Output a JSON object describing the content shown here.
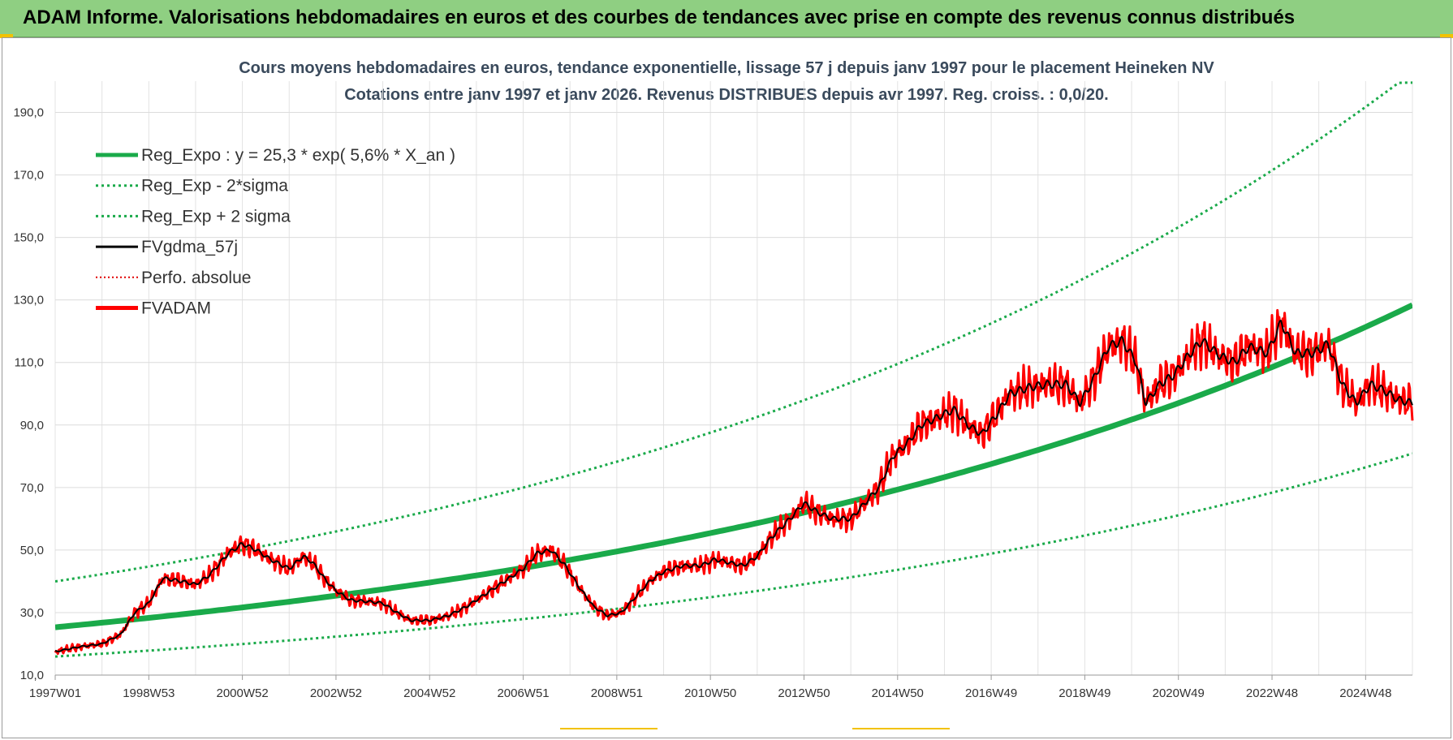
{
  "banner": {
    "title": "ADAM Informe. Valorisations hebdomadaires en euros et des courbes de tendances avec prise en compte des revenus connus distribués"
  },
  "chart_data": {
    "type": "line",
    "title": "Cours moyens hebdomadaires en euros, tendance exponentielle, lissage 57 j depuis janv 1997 pour le placement Heineken NV",
    "subtitle": "Cotations entre janv 1997 et janv 2026. Revenus DISTRIBUES depuis avr 1997. Reg. croiss. : 0,0/20.",
    "x_range": [
      "1997W01",
      "2026W02"
    ],
    "x_tick_labels": [
      "1997W01",
      "1998W53",
      "2000W52",
      "2002W52",
      "2004W52",
      "2006W51",
      "2008W51",
      "2010W50",
      "2012W50",
      "2014W50",
      "2016W49",
      "2018W49",
      "2020W49",
      "2022W48",
      "2024W48"
    ],
    "x_tick_years": [
      1997.0,
      1999.0,
      2001.0,
      2003.0,
      2005.0,
      2007.0,
      2009.0,
      2011.0,
      2013.0,
      2015.0,
      2017.0,
      2019.0,
      2021.0,
      2023.0,
      2025.0
    ],
    "ylim": [
      10,
      200
    ],
    "y_ticks": [
      "10,0",
      "30,0",
      "50,0",
      "70,0",
      "90,0",
      "110,0",
      "130,0",
      "150,0",
      "170,0",
      "190,0"
    ],
    "y_tick_values": [
      10,
      30,
      50,
      70,
      90,
      110,
      130,
      150,
      170,
      190
    ],
    "grid": true,
    "legend_position": "top-left",
    "regression": {
      "a": 25.3,
      "rate": 0.056,
      "upper_factor": 1.58,
      "lower_factor": 0.63
    },
    "series": [
      {
        "name": "Reg_Expo : y = 25,3 * exp( 5,6% *  X_an )",
        "color": "#1aaa4a",
        "style": "solid-thick"
      },
      {
        "name": "Reg_Exp - 2*sigma",
        "color": "#1aaa4a",
        "style": "dotted"
      },
      {
        "name": "Reg_Exp + 2 sigma",
        "color": "#1aaa4a",
        "style": "dotted"
      },
      {
        "name": "FVgdma_57j",
        "color": "#000000",
        "style": "solid"
      },
      {
        "name": "Perfo. absolue",
        "color": "#e00000",
        "style": "dotted"
      },
      {
        "name": "FVADAM",
        "color": "#ff0000",
        "style": "solid-thick",
        "points": [
          [
            1997.0,
            17.5
          ],
          [
            1997.5,
            19.0
          ],
          [
            1998.0,
            20.0
          ],
          [
            1998.4,
            23.0
          ],
          [
            1998.7,
            30.0
          ],
          [
            1999.0,
            33.0
          ],
          [
            1999.3,
            41.0
          ],
          [
            1999.7,
            40.0
          ],
          [
            2000.0,
            39.0
          ],
          [
            2000.3,
            42.0
          ],
          [
            2000.7,
            49.0
          ],
          [
            2001.0,
            52.0
          ],
          [
            2001.3,
            50.0
          ],
          [
            2001.6,
            47.0
          ],
          [
            2002.0,
            44.0
          ],
          [
            2002.3,
            48.0
          ],
          [
            2002.5,
            46.0
          ],
          [
            2002.8,
            40.0
          ],
          [
            2003.0,
            37.0
          ],
          [
            2003.3,
            34.0
          ],
          [
            2003.7,
            33.5
          ],
          [
            2004.0,
            33.0
          ],
          [
            2004.3,
            30.0
          ],
          [
            2004.6,
            27.5
          ],
          [
            2005.0,
            27.5
          ],
          [
            2005.4,
            29.0
          ],
          [
            2005.8,
            32.0
          ],
          [
            2006.2,
            36.0
          ],
          [
            2006.6,
            40.0
          ],
          [
            2007.0,
            44.0
          ],
          [
            2007.3,
            49.0
          ],
          [
            2007.6,
            50.0
          ],
          [
            2007.9,
            45.0
          ],
          [
            2008.2,
            38.0
          ],
          [
            2008.5,
            32.0
          ],
          [
            2008.8,
            29.0
          ],
          [
            2009.1,
            30.0
          ],
          [
            2009.4,
            35.0
          ],
          [
            2009.7,
            40.0
          ],
          [
            2010.0,
            43.0
          ],
          [
            2010.4,
            45.0
          ],
          [
            2010.8,
            45.0
          ],
          [
            2011.1,
            47.0
          ],
          [
            2011.4,
            46.0
          ],
          [
            2011.7,
            45.0
          ],
          [
            2012.0,
            48.0
          ],
          [
            2012.3,
            54.0
          ],
          [
            2012.7,
            60.0
          ],
          [
            2013.0,
            65.0
          ],
          [
            2013.3,
            62.0
          ],
          [
            2013.6,
            60.0
          ],
          [
            2014.0,
            60.0
          ],
          [
            2014.3,
            65.0
          ],
          [
            2014.6,
            70.0
          ],
          [
            2014.9,
            80.0
          ],
          [
            2015.2,
            84.0
          ],
          [
            2015.5,
            90.0
          ],
          [
            2015.8,
            92.0
          ],
          [
            2016.2,
            95.0
          ],
          [
            2016.5,
            90.0
          ],
          [
            2016.8,
            87.0
          ],
          [
            2017.1,
            93.0
          ],
          [
            2017.4,
            100.0
          ],
          [
            2017.8,
            102.0
          ],
          [
            2018.2,
            103.0
          ],
          [
            2018.6,
            103.0
          ],
          [
            2018.9,
            97.0
          ],
          [
            2019.2,
            105.0
          ],
          [
            2019.5,
            115.0
          ],
          [
            2019.8,
            117.0
          ],
          [
            2020.1,
            110.0
          ],
          [
            2020.3,
            97.0
          ],
          [
            2020.6,
            103.0
          ],
          [
            2020.9,
            106.0
          ],
          [
            2021.2,
            112.0
          ],
          [
            2021.5,
            117.0
          ],
          [
            2021.9,
            112.0
          ],
          [
            2022.2,
            110.0
          ],
          [
            2022.5,
            115.0
          ],
          [
            2022.9,
            113.0
          ],
          [
            2023.2,
            123.0
          ],
          [
            2023.5,
            113.0
          ],
          [
            2023.9,
            113.0
          ],
          [
            2024.2,
            116.0
          ],
          [
            2024.5,
            103.0
          ],
          [
            2024.8,
            97.0
          ],
          [
            2025.1,
            103.0
          ],
          [
            2025.4,
            101.0
          ],
          [
            2025.7,
            98.0
          ],
          [
            2026.0,
            97.0
          ]
        ]
      }
    ]
  }
}
